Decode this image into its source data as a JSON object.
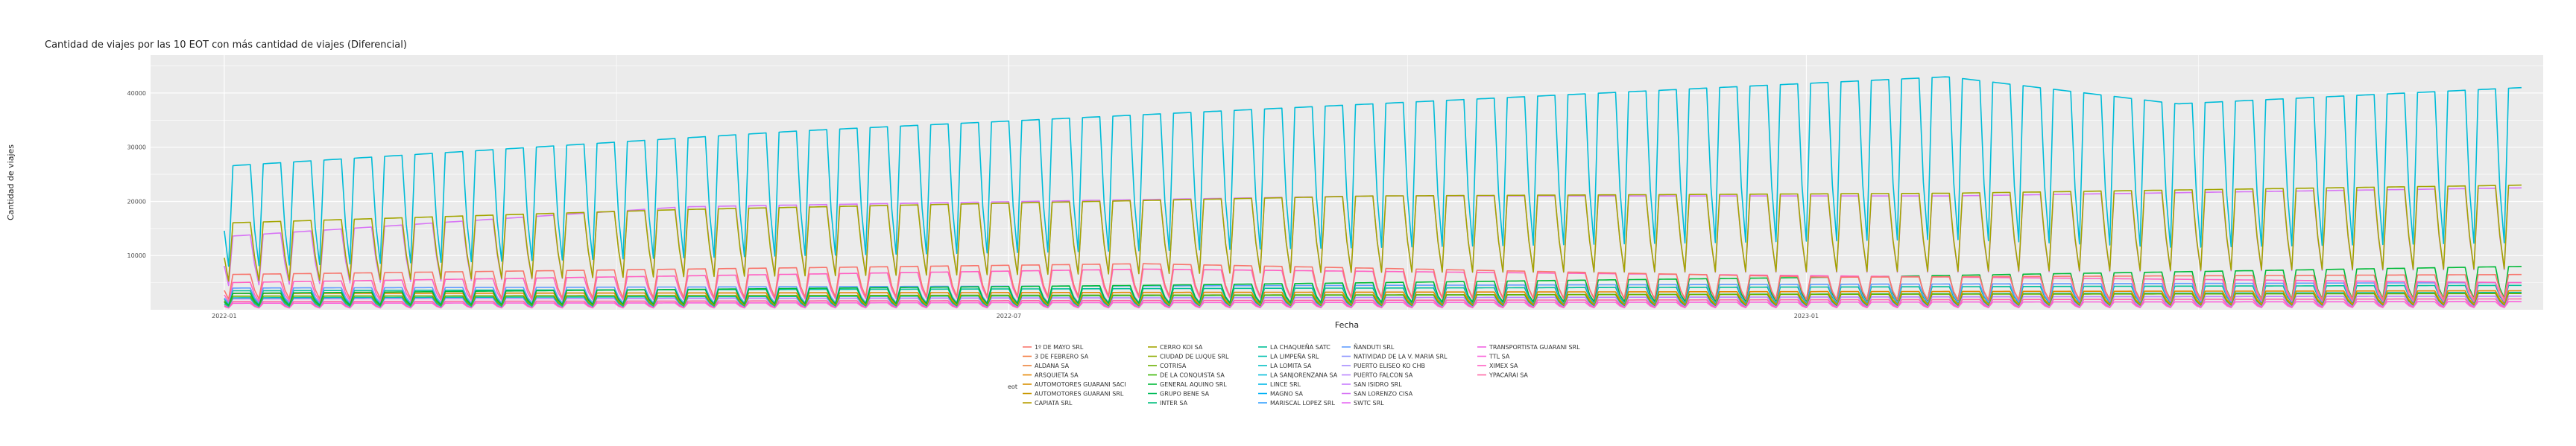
{
  "chart_data": {
    "type": "line",
    "title": "Cantidad de viajes por las 10 EOT con más cantidad de viajes (Diferencial)",
    "xlabel": "Fecha",
    "ylabel": "Cantidad de viajes",
    "x_ticks": [
      "2022-01",
      "2022-07",
      "2023-01"
    ],
    "y_ticks": [
      10000,
      20000,
      30000,
      40000
    ],
    "ylim": [
      0,
      47000
    ],
    "xlim": [
      "2021-12-15",
      "2023-06-20"
    ],
    "grid": true,
    "legend": {
      "title": "eot",
      "position": "bottom"
    },
    "series": [
      {
        "name": "1º DE MAYO SRL",
        "color": "#F8766D"
      },
      {
        "name": "3 DE FEBRERO SA",
        "color": "#F47A3E"
      },
      {
        "name": "ALDANA SA",
        "color": "#EC8239"
      },
      {
        "name": "ARSQUIETA SA",
        "color": "#E58700"
      },
      {
        "name": "AUTOMOTORES GUARANI SACI",
        "color": "#D89000"
      },
      {
        "name": "AUTOMOTORES GUARANI SRL",
        "color": "#C99800"
      },
      {
        "name": "CAPIATA SRL",
        "color": "#B79F00"
      },
      {
        "name": "CERRO KOI SA",
        "color": "#A3A500"
      },
      {
        "name": "CIUDAD DE LUQUE SRL",
        "color": "#8DAB00"
      },
      {
        "name": "COTRISA",
        "color": "#6BB100"
      },
      {
        "name": "DE LA CONQUISTA SA",
        "color": "#39B600"
      },
      {
        "name": "GENERAL AQUINO SRL",
        "color": "#00BA38"
      },
      {
        "name": "GRUPO BENE SA",
        "color": "#00BC59"
      },
      {
        "name": "INTER SA",
        "color": "#00BF7D"
      },
      {
        "name": "LA CHAQUEÑA SATC",
        "color": "#00C098"
      },
      {
        "name": "LA LIMPEÑA SRL",
        "color": "#00C0AF"
      },
      {
        "name": "LA LOMITA SA",
        "color": "#00BFC4"
      },
      {
        "name": "LA SANJORENZANA SA",
        "color": "#00BCD8"
      },
      {
        "name": "LINCE SRL",
        "color": "#00B8E7"
      },
      {
        "name": "MAGNO SA",
        "color": "#00B0F6"
      },
      {
        "name": "MARISCAL LOPEZ SRL",
        "color": "#35A2FF"
      },
      {
        "name": "ÑANDUTI SRL",
        "color": "#619CFF"
      },
      {
        "name": "NATIVIDAD DE LA V. MARIA SRL",
        "color": "#8B93FF"
      },
      {
        "name": "PUERTO ELISEO KO CHB",
        "color": "#A58AFF"
      },
      {
        "name": "PUERTO FALCON SA",
        "color": "#B983FF"
      },
      {
        "name": "SAN ISIDRO SRL",
        "color": "#C77CFF"
      },
      {
        "name": "SAN LORENZO CISA",
        "color": "#D774F5"
      },
      {
        "name": "SWTC SRL",
        "color": "#E76BF3"
      },
      {
        "name": "TRANSPORTISTA GUARANI SRL",
        "color": "#F263E2"
      },
      {
        "name": "TTL SA",
        "color": "#FA62DB"
      },
      {
        "name": "XIMEX SA",
        "color": "#FF61C3"
      },
      {
        "name": "YPACARAI SA",
        "color": "#FF67A4"
      }
    ],
    "profiles": [
      {
        "series": "LA SANJORENZANA SA",
        "weekday_level": [
          [
            0,
            26500
          ],
          [
            0.25,
            33000
          ],
          [
            0.5,
            38000
          ],
          [
            0.75,
            43000
          ],
          [
            0.85,
            38000
          ],
          [
            1,
            41000
          ]
        ],
        "weekend_factor": 0.55
      },
      {
        "series": "CERRO KOI SA",
        "weekday_level": [
          [
            0,
            16000
          ],
          [
            0.2,
            18500
          ],
          [
            0.5,
            21000
          ],
          [
            0.75,
            21500
          ],
          [
            1,
            23000
          ]
        ],
        "weekend_factor": 0.6
      },
      {
        "series": "SAN LORENZO CISA",
        "weekday_level": [
          [
            0,
            13500
          ],
          [
            0.2,
            19000
          ],
          [
            0.5,
            21000
          ],
          [
            0.75,
            21000
          ],
          [
            1,
            22500
          ]
        ],
        "weekend_factor": 0.6
      },
      {
        "series": "1º DE MAYO SRL",
        "weekday_level": [
          [
            0,
            6500
          ],
          [
            0.4,
            8500
          ],
          [
            0.7,
            6000
          ],
          [
            1,
            6500
          ]
        ],
        "weekend_factor": 0.55
      },
      {
        "series": "XIMEX SA",
        "weekday_level": [
          [
            0,
            5000
          ],
          [
            0.4,
            7500
          ],
          [
            1,
            5000
          ]
        ],
        "weekend_factor": 0.55
      },
      {
        "series": "GENERAL AQUINO SRL",
        "weekday_level": [
          [
            0,
            3000
          ],
          [
            0.4,
            4500
          ],
          [
            0.7,
            6000
          ],
          [
            1,
            8000
          ]
        ],
        "weekend_factor": 0.5
      },
      {
        "series": "ÑANDUTI SRL",
        "weekday_level": [
          [
            0,
            4000
          ],
          [
            1,
            5000
          ]
        ],
        "weekend_factor": 0.55
      },
      {
        "series": "LA CHAQUEÑA SATC",
        "weekday_level": [
          [
            0,
            3500
          ],
          [
            1,
            4500
          ]
        ],
        "weekend_factor": 0.55
      },
      {
        "series": "ARSQUIETA SA",
        "weekday_level": [
          [
            0,
            3000
          ],
          [
            1,
            3500
          ]
        ],
        "weekend_factor": 0.55
      },
      {
        "series": "COTRISA",
        "weekday_level": [
          [
            0,
            2500
          ],
          [
            1,
            3000
          ]
        ],
        "weekend_factor": 0.55
      },
      {
        "series": "LA LIMPEÑA SRL",
        "weekday_level": [
          [
            0,
            2200
          ],
          [
            1,
            3200
          ]
        ],
        "weekend_factor": 0.5
      },
      {
        "series": "PUERTO FALCON SA",
        "weekday_level": [
          [
            0,
            2000
          ],
          [
            1,
            2500
          ]
        ],
        "weekend_factor": 0.5
      },
      {
        "series": "YPACARAI SA",
        "weekday_level": [
          [
            0,
            1500
          ],
          [
            1,
            2000
          ]
        ],
        "weekend_factor": 0.5
      },
      {
        "series": "TTL SA",
        "weekday_level": [
          [
            0,
            1200
          ],
          [
            1,
            1500
          ]
        ],
        "weekend_factor": 0.5
      }
    ]
  }
}
